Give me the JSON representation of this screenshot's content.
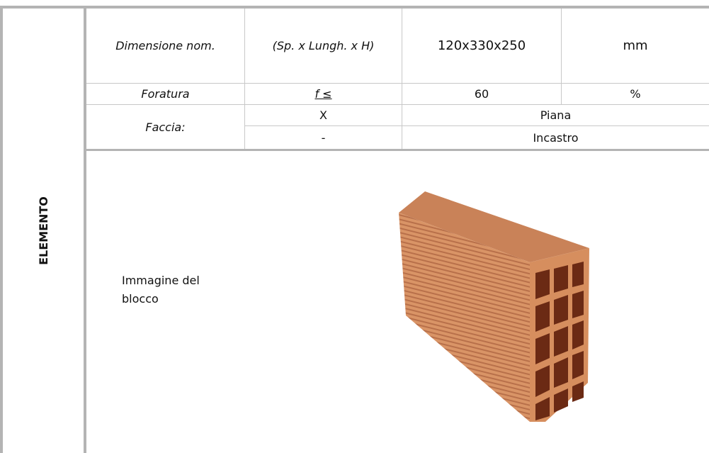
{
  "section": {
    "label": "ELEMENTO"
  },
  "table": {
    "rows": [
      [
        "Dimensione nom.",
        "(Sp. x Lungh. x H)",
        "120x330x250",
        "mm"
      ],
      [
        "Foratura",
        "f ≤",
        "60",
        "%"
      ],
      [
        "Faccia:",
        "X",
        "Piana"
      ],
      [
        "-",
        "Incastro"
      ]
    ]
  },
  "image_row": {
    "label": "Immagine del blocco"
  }
}
